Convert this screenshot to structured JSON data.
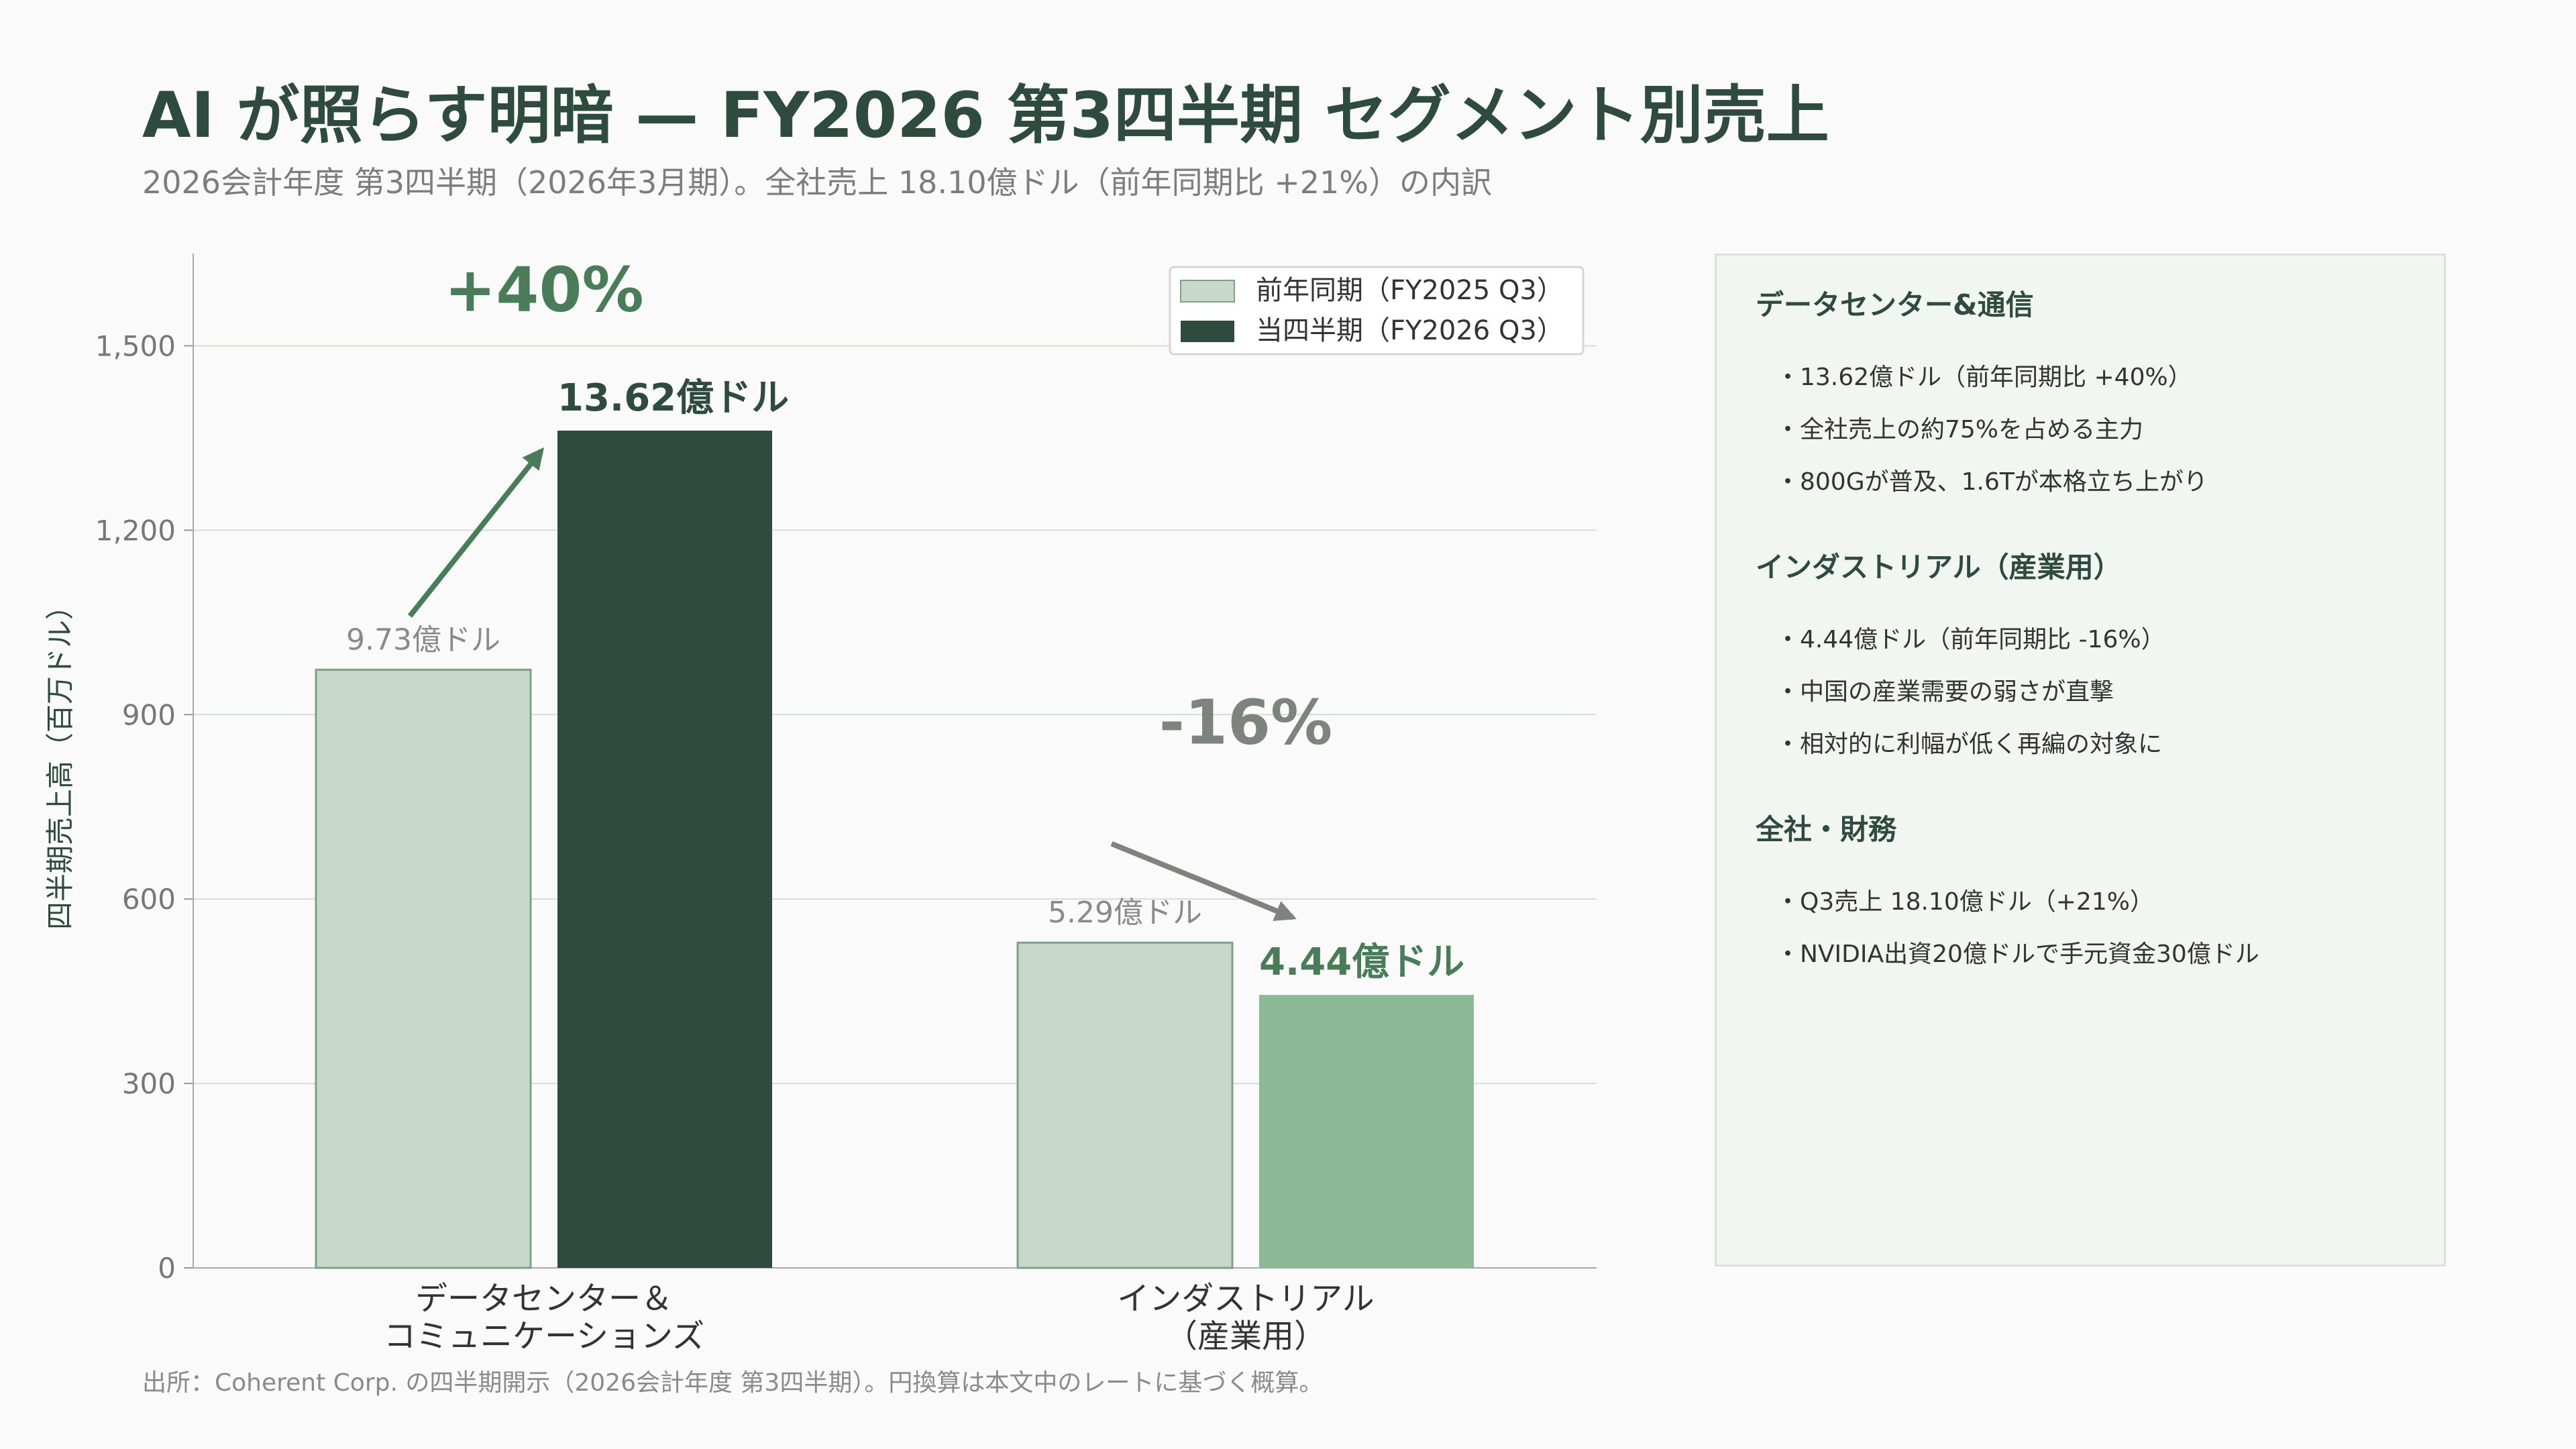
{
  "header": {
    "title": "AI が照らす明暗 — FY2026 第3四半期 セグメント別売上",
    "subtitle": "2026会計年度 第3四半期（2026年3月期）。全社売上 18.10億ドル（前年同期比 +21%）の内訳"
  },
  "chart_data": {
    "type": "bar",
    "ylabel": "四半期売上高（百万ドル）",
    "ylim": [
      0,
      1650
    ],
    "yticks": [
      0,
      300,
      600,
      900,
      1200,
      1500
    ],
    "ytick_labels": [
      "0",
      "300",
      "600",
      "900",
      "1,200",
      "1,500"
    ],
    "grid": true,
    "legend_position": "top-right",
    "categories": [
      [
        "データセンター＆",
        "コミュニケーションズ"
      ],
      [
        "インダストリアル",
        "（産業用）"
      ]
    ],
    "series": [
      {
        "name": "前年同期（FY2025 Q3）",
        "values": [
          973,
          529
        ],
        "data_labels": [
          "9.73億ドル",
          "5.29億ドル"
        ],
        "colors": [
          "#c7d9cb",
          "#c7d9cb"
        ]
      },
      {
        "name": "当四半期（FY2026 Q3）",
        "values": [
          1362,
          444
        ],
        "data_labels": [
          "13.62億ドル",
          "4.44億ドル"
        ],
        "colors": [
          "#2f4a3e",
          "#8db896"
        ]
      }
    ],
    "annotations": [
      {
        "category": 0,
        "text": "+40%",
        "color": "#4a7c59"
      },
      {
        "category": 1,
        "text": "-16%",
        "color": "#7d837f"
      }
    ]
  },
  "colors": {
    "prev_year": "#c7d9cb",
    "current_dc": "#2f4a3e",
    "current_ind": "#8db896",
    "growth": "#4a7c59",
    "decline": "#7d837f"
  },
  "panel": {
    "sections": [
      {
        "heading": "データセンター&通信",
        "bullets": [
          "・13.62億ドル（前年同期比 +40%）",
          "・全社売上の約75%を占める主力",
          "・800Gが普及、1.6Tが本格立ち上がり"
        ]
      },
      {
        "heading": "インダストリアル（産業用）",
        "bullets": [
          "・4.44億ドル（前年同期比 -16%）",
          "・中国の産業需要の弱さが直撃",
          "・相対的に利幅が低く再編の対象に"
        ]
      },
      {
        "heading": "全社・財務",
        "bullets": [
          "・Q3売上 18.10億ドル（+21%）",
          "・NVIDIA出資20億ドルで手元資金30億ドル"
        ]
      }
    ]
  },
  "footer": {
    "source": "出所：Coherent Corp. の四半期開示（2026会計年度 第3四半期）。円換算は本文中のレートに基づく概算。"
  }
}
